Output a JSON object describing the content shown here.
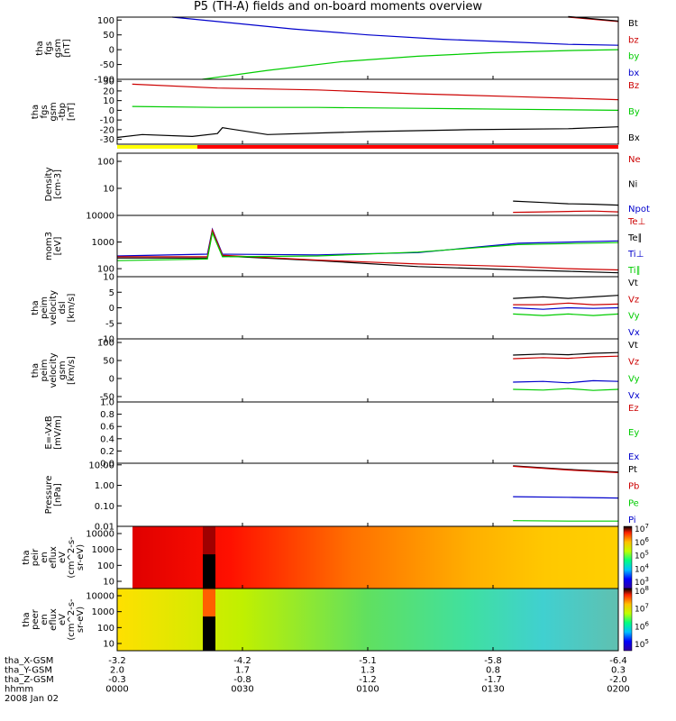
{
  "title": "P5 (TH-A) fields and on-board moments overview",
  "chart_data": [
    {
      "type": "line",
      "ylabel_lines": [
        "tha",
        "fgs",
        "gsm",
        "[nT]"
      ],
      "yticks": [
        100,
        50,
        0,
        -50,
        -100
      ],
      "ylim": [
        -100,
        110
      ],
      "legend": [
        {
          "label": "Bt",
          "color": "#000000"
        },
        {
          "label": "bz",
          "color": "#cc0000"
        },
        {
          "label": "by",
          "color": "#00cc00"
        },
        {
          "label": "bx",
          "color": "#0000cc"
        }
      ],
      "series": [
        {
          "color": "#0000cc",
          "x": [
            0.11,
            0.2,
            0.35,
            0.5,
            0.65,
            0.8,
            0.9,
            1.0
          ],
          "y": [
            110,
            95,
            70,
            50,
            35,
            25,
            18,
            15
          ]
        },
        {
          "color": "#00cc00",
          "x": [
            0.17,
            0.3,
            0.45,
            0.6,
            0.75,
            0.9,
            1.0
          ],
          "y": [
            -100,
            -70,
            -40,
            -22,
            -10,
            -3,
            0
          ]
        },
        {
          "color": "#cc0000",
          "x": [
            0.9,
            1.0
          ],
          "y": [
            110,
            95
          ]
        },
        {
          "color": "#000000",
          "x": [
            0.9,
            1.0
          ],
          "y": [
            112,
            97
          ]
        }
      ]
    },
    {
      "type": "line",
      "ylabel_lines": [
        "tha",
        "fgs",
        "gsm",
        "-tbp",
        "[nT]"
      ],
      "yticks": [
        30,
        20,
        10,
        0,
        -10,
        -20,
        -30
      ],
      "ylim": [
        -35,
        32
      ],
      "legend": [
        {
          "label": "Bz",
          "color": "#cc0000"
        },
        {
          "label": "By",
          "color": "#00cc00"
        },
        {
          "label": "Bx",
          "color": "#000000"
        }
      ],
      "series": [
        {
          "color": "#cc0000",
          "x": [
            0.03,
            0.2,
            0.4,
            0.6,
            0.8,
            1.0
          ],
          "y": [
            27,
            23,
            21,
            17,
            14,
            11
          ]
        },
        {
          "color": "#00cc00",
          "x": [
            0.03,
            0.2,
            0.4,
            0.6,
            0.8,
            1.0
          ],
          "y": [
            4,
            3,
            3,
            2,
            1,
            0
          ]
        },
        {
          "color": "#000000",
          "x": [
            0.0,
            0.05,
            0.15,
            0.2,
            0.21,
            0.3,
            0.5,
            0.7,
            0.9,
            1.0
          ],
          "y": [
            -28,
            -25,
            -27,
            -24,
            -18,
            -25,
            -22,
            -20,
            -19,
            -17
          ]
        }
      ],
      "mode_bar": [
        {
          "from": 0.0,
          "to": 0.16,
          "color": "#ffff00"
        },
        {
          "from": 0.16,
          "to": 1.0,
          "color": "#ff0000"
        }
      ]
    },
    {
      "type": "line",
      "ylabel_lines": [
        "Density",
        "[cm-3]"
      ],
      "yticks": [
        "100",
        "10"
      ],
      "log_scale": true,
      "ylim": [
        1,
        200
      ],
      "legend": [
        {
          "label": "Ne",
          "color": "#cc0000"
        },
        {
          "label": "Ni",
          "color": "#000000"
        },
        {
          "label": "Npot",
          "color": "#0000cc"
        }
      ],
      "series": [
        {
          "color": "#000000",
          "x": [
            0.79,
            0.85,
            0.9,
            0.95,
            1.0
          ],
          "y": [
            3.4,
            3.0,
            2.7,
            2.6,
            2.4
          ]
        },
        {
          "color": "#cc0000",
          "x": [
            0.79,
            0.85,
            0.9,
            0.95,
            1.0
          ],
          "y": [
            1.3,
            1.35,
            1.4,
            1.45,
            1.35
          ]
        }
      ]
    },
    {
      "type": "line",
      "ylabel_lines": [
        "mom3",
        "[eV]"
      ],
      "yticks": [
        "10000",
        "1000",
        "100"
      ],
      "log_scale": true,
      "ylim": [
        50,
        10000
      ],
      "legend": [
        {
          "label": "Te⊥",
          "color": "#cc0000"
        },
        {
          "label": "Te∥",
          "color": "#000000"
        },
        {
          "label": "Ti⊥",
          "color": "#0000cc"
        },
        {
          "label": "Ti∥",
          "color": "#00cc00"
        }
      ],
      "series": [
        {
          "color": "#0000cc",
          "x": [
            0.0,
            0.18,
            0.19,
            0.21,
            0.4,
            0.6,
            0.8,
            1.0
          ],
          "y": [
            300,
            350,
            3000,
            350,
            330,
            400,
            900,
            1100
          ]
        },
        {
          "color": "#000000",
          "x": [
            0.0,
            0.18,
            0.19,
            0.21,
            0.4,
            0.6,
            0.8,
            0.9,
            1.0
          ],
          "y": [
            250,
            250,
            2500,
            300,
            200,
            120,
            90,
            80,
            70
          ]
        },
        {
          "color": "#cc0000",
          "x": [
            0.0,
            0.18,
            0.19,
            0.21,
            0.4,
            0.6,
            0.8,
            0.9,
            1.0
          ],
          "y": [
            280,
            280,
            2800,
            320,
            210,
            150,
            120,
            100,
            90
          ]
        },
        {
          "color": "#00cc00",
          "x": [
            0.0,
            0.18,
            0.19,
            0.21,
            0.4,
            0.6,
            0.8,
            1.0
          ],
          "y": [
            200,
            230,
            2200,
            280,
            300,
            420,
            800,
            950
          ]
        }
      ]
    },
    {
      "type": "line",
      "ylabel_lines": [
        "tha",
        "peim",
        "velocity",
        "dsl",
        "[km/s]"
      ],
      "yticks": [
        10,
        5,
        0,
        -5,
        -10
      ],
      "ylim": [
        -10,
        10
      ],
      "legend": [
        {
          "label": "Vt",
          "color": "#000000"
        },
        {
          "label": "Vz",
          "color": "#cc0000"
        },
        {
          "label": "Vy",
          "color": "#00cc00"
        },
        {
          "label": "Vx",
          "color": "#0000cc"
        }
      ],
      "series": [
        {
          "color": "#000000",
          "x": [
            0.79,
            0.85,
            0.9,
            0.95,
            1.0
          ],
          "y": [
            3,
            3.5,
            3,
            3.5,
            4
          ]
        },
        {
          "color": "#cc0000",
          "x": [
            0.79,
            0.85,
            0.9,
            0.95,
            1.0
          ],
          "y": [
            1,
            1,
            1.5,
            1,
            1.2
          ]
        },
        {
          "color": "#0000cc",
          "x": [
            0.79,
            0.85,
            0.9,
            0.95,
            1.0
          ],
          "y": [
            0,
            -0.5,
            0,
            -0.2,
            0
          ]
        },
        {
          "color": "#00cc00",
          "x": [
            0.79,
            0.85,
            0.9,
            0.95,
            1.0
          ],
          "y": [
            -2,
            -2.5,
            -2,
            -2.5,
            -2
          ]
        }
      ]
    },
    {
      "type": "line",
      "ylabel_lines": [
        "tha",
        "peim",
        "velocity",
        "gsm",
        "[km/s]"
      ],
      "yticks": [
        100,
        50,
        0,
        -50
      ],
      "ylim": [
        -65,
        110
      ],
      "legend": [
        {
          "label": "Vt",
          "color": "#000000"
        },
        {
          "label": "Vz",
          "color": "#cc0000"
        },
        {
          "label": "Vy",
          "color": "#00cc00"
        },
        {
          "label": "Vx",
          "color": "#0000cc"
        }
      ],
      "series": [
        {
          "color": "#000000",
          "x": [
            0.79,
            0.85,
            0.9,
            0.95,
            1.0
          ],
          "y": [
            65,
            68,
            66,
            70,
            72
          ]
        },
        {
          "color": "#cc0000",
          "x": [
            0.79,
            0.85,
            0.9,
            0.95,
            1.0
          ],
          "y": [
            55,
            58,
            56,
            60,
            62
          ]
        },
        {
          "color": "#0000cc",
          "x": [
            0.79,
            0.85,
            0.9,
            0.95,
            1.0
          ],
          "y": [
            -10,
            -8,
            -12,
            -6,
            -8
          ]
        },
        {
          "color": "#00cc00",
          "x": [
            0.79,
            0.85,
            0.9,
            0.95,
            1.0
          ],
          "y": [
            -30,
            -32,
            -28,
            -33,
            -30
          ]
        }
      ]
    },
    {
      "type": "line",
      "ylabel_lines": [
        "E=-VxB",
        "[mV/m]"
      ],
      "yticks": [
        "1.0",
        "0.8",
        "0.6",
        "0.4",
        "0.2",
        "0.0"
      ],
      "ylim": [
        0,
        1
      ],
      "legend": [
        {
          "label": "Ez",
          "color": "#cc0000"
        },
        {
          "label": "Ey",
          "color": "#00cc00"
        },
        {
          "label": "Ex",
          "color": "#0000cc"
        }
      ],
      "series": []
    },
    {
      "type": "line",
      "ylabel_lines": [
        "Pressure",
        "[nPa]"
      ],
      "yticks": [
        "10.00",
        "1.00",
        "0.10",
        "0.01"
      ],
      "log_scale": true,
      "ylim": [
        0.01,
        12
      ],
      "legend": [
        {
          "label": "Pt",
          "color": "#000000"
        },
        {
          "label": "Pb",
          "color": "#cc0000"
        },
        {
          "label": "Pe",
          "color": "#00cc00"
        },
        {
          "label": "Pi",
          "color": "#0000cc"
        }
      ],
      "series": [
        {
          "color": "#000000",
          "x": [
            0.79,
            0.9,
            1.0
          ],
          "y": [
            9,
            6,
            4.5
          ]
        },
        {
          "color": "#cc0000",
          "x": [
            0.79,
            0.9,
            1.0
          ],
          "y": [
            8.5,
            5.6,
            4.2
          ]
        },
        {
          "color": "#0000cc",
          "x": [
            0.79,
            0.9,
            1.0
          ],
          "y": [
            0.28,
            0.26,
            0.24
          ]
        },
        {
          "color": "#00cc00",
          "x": [
            0.79,
            0.9,
            1.0
          ],
          "y": [
            0.019,
            0.018,
            0.018
          ]
        }
      ]
    },
    {
      "type": "heatmap",
      "ylabel_lines": [
        "tha",
        "peir",
        "en",
        "eflux",
        "eV",
        "(cm^2-s-",
        "sr-eV)"
      ],
      "yticks": [
        "10000",
        "1000",
        "100",
        "10"
      ],
      "colorbar_ticks": [
        {
          "base": "10",
          "exp": "7"
        },
        {
          "base": "10",
          "exp": "6"
        },
        {
          "base": "10",
          "exp": "5"
        },
        {
          "base": "10",
          "exp": "4"
        },
        {
          "base": "10",
          "exp": "3"
        }
      ]
    },
    {
      "type": "heatmap",
      "ylabel_lines": [
        "tha",
        "peer",
        "en",
        "eflux",
        "eV",
        "(cm^2-s-",
        "sr-eV)"
      ],
      "yticks": [
        "10000",
        "1000",
        "100",
        "10"
      ],
      "colorbar_ticks": [
        {
          "base": "10",
          "exp": "8"
        },
        {
          "base": "10",
          "exp": "7"
        },
        {
          "base": "10",
          "exp": "6"
        },
        {
          "base": "10",
          "exp": "5"
        }
      ]
    }
  ],
  "x_axis": {
    "rows": [
      {
        "label": "tha_X-GSM",
        "values": [
          "-3.2",
          "-4.2",
          "-5.1",
          "-5.8",
          "-6.4"
        ]
      },
      {
        "label": "tha_Y-GSM",
        "values": [
          "2.0",
          "1.7",
          "1.3",
          "0.8",
          "0.3"
        ]
      },
      {
        "label": "tha_Z-GSM",
        "values": [
          "-0.3",
          "-0.8",
          "-1.2",
          "-1.7",
          "-2.0"
        ]
      },
      {
        "label": "hhmm",
        "values": [
          "0000",
          "0030",
          "0100",
          "0130",
          "0200"
        ]
      }
    ],
    "date": "2008 Jan 02"
  }
}
